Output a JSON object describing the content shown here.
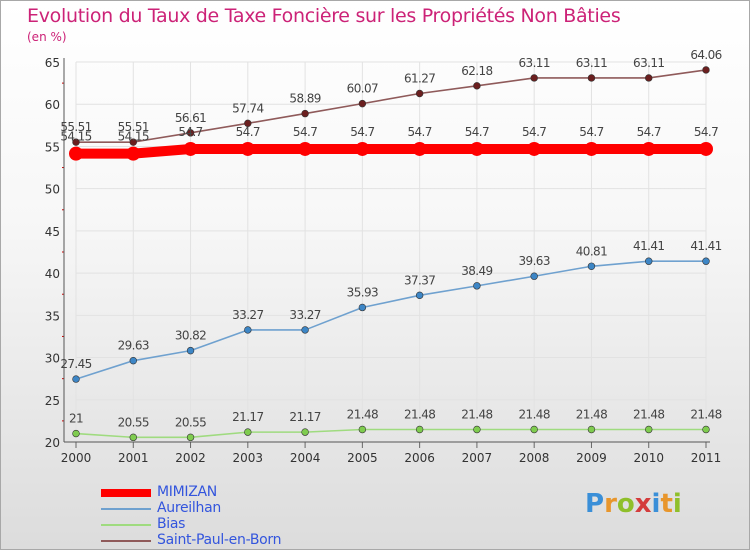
{
  "title": "Evolution du Taux de Taxe Foncière sur les Propriétés Non Bâties",
  "unit_label": "(en %)",
  "logo": {
    "text": "Proxiti",
    "letter_colors": [
      "#3a8fd8",
      "#e8962c",
      "#8fbf2a",
      "#d43c3c",
      "#3a8fd8",
      "#e8962c",
      "#8fbf2a"
    ]
  },
  "chart_data": {
    "type": "line",
    "x": [
      "2000",
      "2001",
      "2002",
      "2003",
      "2004",
      "2005",
      "2006",
      "2007",
      "2008",
      "2009",
      "2010",
      "2011"
    ],
    "ylim": [
      20,
      65
    ],
    "yticks": [
      20,
      25,
      30,
      35,
      40,
      45,
      50,
      55,
      60,
      65
    ],
    "grid": true,
    "legend_position": "bottom-left",
    "series": [
      {
        "name": "MIMIZAN",
        "color": "#ff0000",
        "values": [
          54.15,
          54.15,
          54.7,
          54.7,
          54.7,
          54.7,
          54.7,
          54.7,
          54.7,
          54.7,
          54.7,
          54.7
        ],
        "labels": [
          "54.15",
          "54.15",
          "54.7",
          "54.7",
          "54.7",
          "54.7",
          "54.7",
          "54.7",
          "54.7",
          "54.7",
          "54.7",
          "54.7"
        ],
        "bold": true
      },
      {
        "name": "Aureilhan",
        "color": "#6fa1cf",
        "marker": "#3d86c6",
        "values": [
          27.45,
          29.63,
          30.82,
          33.27,
          33.27,
          35.93,
          37.37,
          38.49,
          39.63,
          40.81,
          41.41,
          41.41
        ],
        "labels": [
          "27.45",
          "29.63",
          "30.82",
          "33.27",
          "33.27",
          "35.93",
          "37.37",
          "38.49",
          "39.63",
          "40.81",
          "41.41",
          "41.41"
        ]
      },
      {
        "name": "Bias",
        "color": "#9fdb7f",
        "marker": "#7fcc4f",
        "values": [
          21,
          20.55,
          20.55,
          21.17,
          21.17,
          21.48,
          21.48,
          21.48,
          21.48,
          21.48,
          21.48,
          21.48
        ],
        "labels": [
          "21",
          "20.55",
          "20.55",
          "21.17",
          "21.17",
          "21.48",
          "21.48",
          "21.48",
          "21.48",
          "21.48",
          "21.48",
          "21.48"
        ]
      },
      {
        "name": "Saint-Paul-en-Born",
        "color": "#8f5a5a",
        "marker": "#6b1f1f",
        "values": [
          55.51,
          55.51,
          56.61,
          57.74,
          58.89,
          60.07,
          61.27,
          62.18,
          63.11,
          63.11,
          63.11,
          64.06
        ],
        "labels": [
          "55.51",
          "55.51",
          "56.61",
          "57.74",
          "58.89",
          "60.07",
          "61.27",
          "62.18",
          "63.11",
          "63.11",
          "63.11",
          "64.06"
        ]
      }
    ]
  }
}
